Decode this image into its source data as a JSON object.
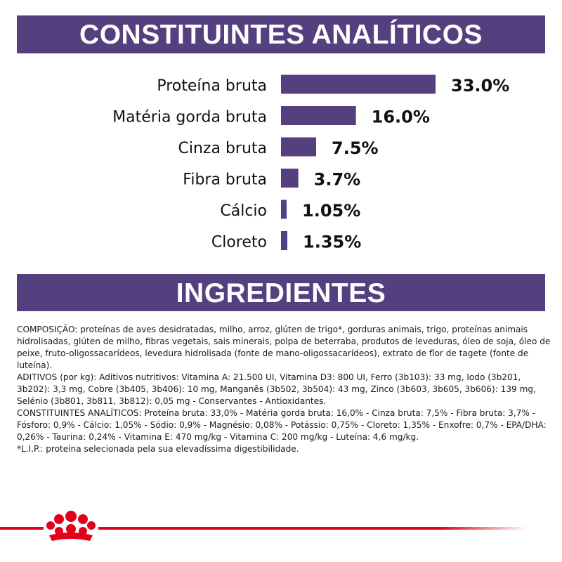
{
  "colors": {
    "accent": "#55407f",
    "brand_red": "#e2001a"
  },
  "sections": {
    "analytic_title": "CONSTITUINTES ANALÍTICOS",
    "ingredients_title": "INGREDIENTES"
  },
  "chart_data": {
    "type": "bar",
    "orientation": "horizontal",
    "categories": [
      "Proteína bruta",
      "Matéria gorda bruta",
      "Cinza bruta",
      "Fibra bruta",
      "Cálcio",
      "Cloreto"
    ],
    "values": [
      33.0,
      16.0,
      7.5,
      3.7,
      1.05,
      1.35
    ],
    "value_labels": [
      "33.0%",
      "16.0%",
      "7.5%",
      "3.7%",
      "1.05%",
      "1.35%"
    ],
    "xlim": [
      0,
      33.0
    ],
    "grid": false,
    "legend": "none"
  },
  "ingredients": {
    "paragraphs": [
      "COMPOSIÇÃO: proteínas de aves desidratadas, milho, arroz, glúten de trigo*, gorduras animais, trigo, proteínas animais hidrolisadas, glúten de milho, fibras vegetais, sais minerais, polpa de beterraba, produtos de leveduras, óleo de soja, óleo de peixe, fruto-oligossacarídeos, levedura hidrolisada (fonte de mano-oligossacarídeos), extrato de flor de tagete (fonte de luteína).",
      "ADITIVOS (por kg): Aditivos nutritivos: Vitamina A: 21.500 UI, Vitamina D3: 800 UI, Ferro (3b103): 33 mg, Iodo (3b201, 3b202): 3,3 mg, Cobre (3b405, 3b406): 10 mg, Manganês (3b502, 3b504): 43 mg, Zinco (3b603, 3b605, 3b606): 139 mg, Selénio (3b801, 3b811, 3b812): 0,05 mg - Conservantes - Antioxidantes.",
      "CONSTITUINTES ANALÍTICOS: Proteína bruta: 33,0% - Matéria gorda bruta: 16,0% - Cinza bruta: 7,5% - Fibra bruta: 3,7% - Fósforo: 0,9% - Cálcio: 1,05% - Sódio: 0,9% - Magnésio: 0,08% - Potássio: 0,75% - Cloreto: 1,35% - Enxofre: 0,7% - EPA/DHA: 0,26% - Taurina: 0,24% - Vitamina E: 470 mg/kg - Vitamina C: 200 mg/kg - Luteína: 4,6 mg/kg.",
      "*L.I.P.: proteína selecionada pela sua elevadíssima digestibilidade."
    ]
  },
  "footer": {
    "logo_icon": "crown-icon"
  }
}
